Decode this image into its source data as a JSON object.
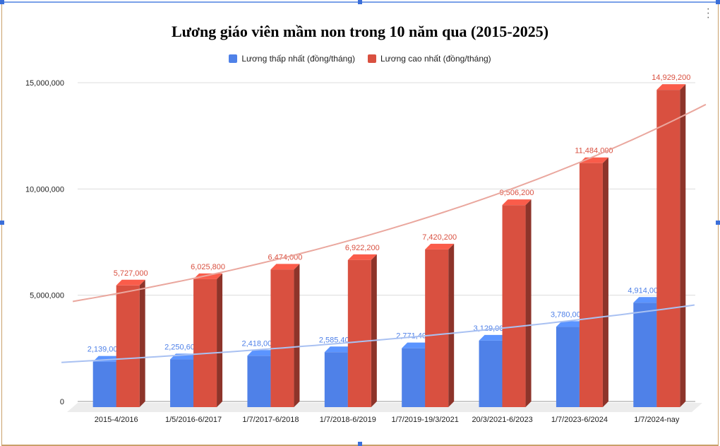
{
  "chart_data": {
    "type": "bar",
    "title": "Lương giáo viên mầm non trong 10 năm qua (2015-2025)",
    "categories": [
      "2015-4/2016",
      "1/5/2016-6/2017",
      "1/7/2017-6/2018",
      "1/7/2018-6/2019",
      "1/7/2019-19/3/2021",
      "20/3/2021-6/2023",
      "1/7/2023-6/2024",
      "1/7/2024-nay"
    ],
    "series": [
      {
        "name": "Lương thấp nhất (đồng/tháng)",
        "color": "#4f81e8",
        "values": [
          2139000,
          2250600,
          2418000,
          2585400,
          2771400,
          3129000,
          3780000,
          4914000
        ],
        "labels": [
          "2,139,000",
          "2,250,600",
          "2,418,000",
          "2,585,400",
          "2,771,400",
          "3,129,000",
          "3,780,000",
          "4,914,000"
        ]
      },
      {
        "name": "Lương cao nhất (đồng/tháng)",
        "color": "#d95040",
        "values": [
          5727000,
          6025800,
          6474000,
          6922200,
          7420200,
          9506200,
          11484000,
          14929200
        ],
        "labels": [
          "5,727,000",
          "6,025,800",
          "6,474,000",
          "6,922,200",
          "7,420,200",
          "9,506,200",
          "11,484,000",
          "14,929,200"
        ]
      }
    ],
    "yticks": [
      "0",
      "5,000,000",
      "10,000,000",
      "15,000,000"
    ],
    "ylim": [
      0,
      15000000
    ],
    "grid": true,
    "legend": "top",
    "style": "3d",
    "trendlines": "exponential"
  }
}
